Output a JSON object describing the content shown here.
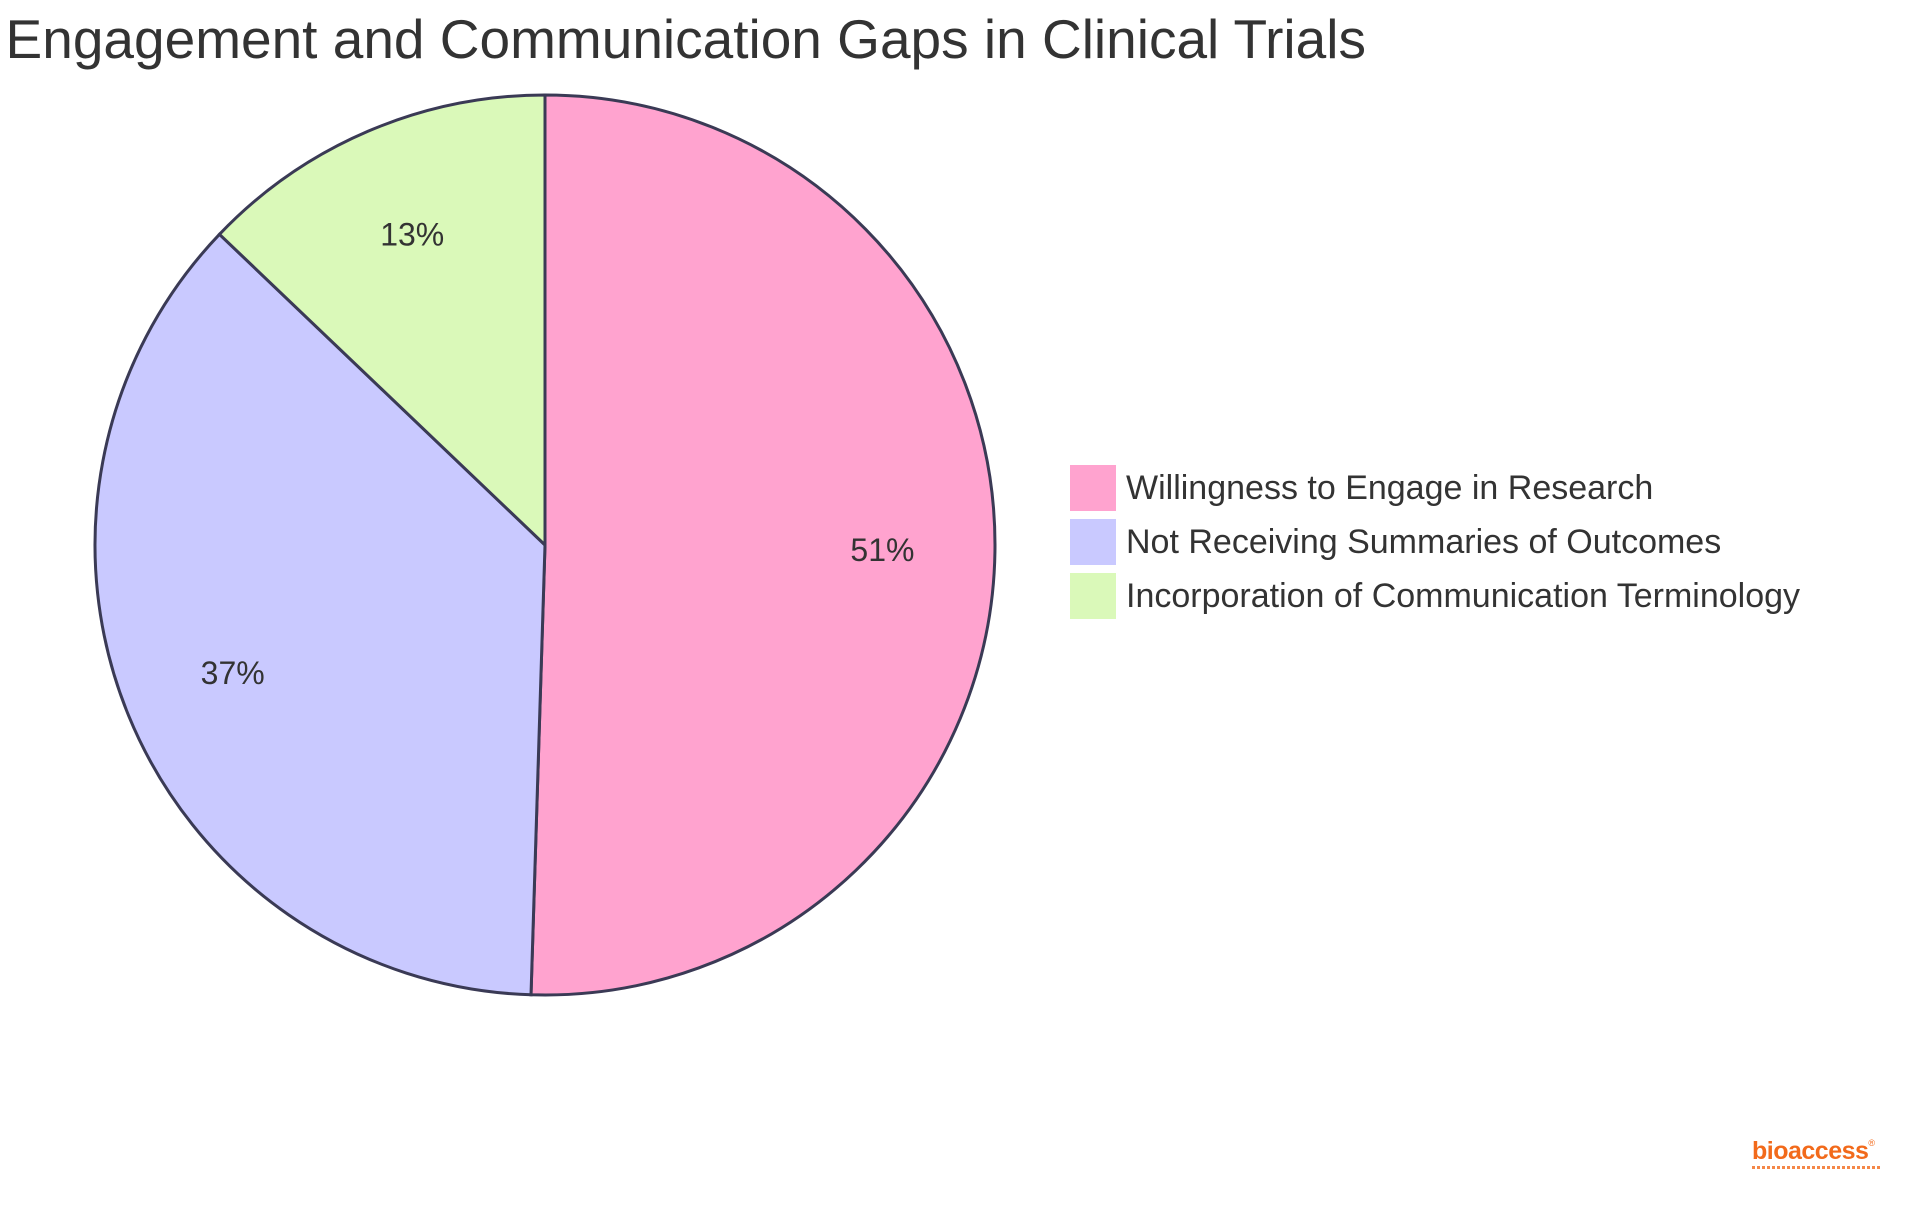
{
  "chart_data": {
    "type": "pie",
    "title": "t Engagement and Communication Gaps in Clinical Trials",
    "slices": [
      {
        "label": "Willingness to Engage in Research",
        "value": 51,
        "display": "51%",
        "color": "#ffa3cf"
      },
      {
        "label": "Not Receiving Summaries of Outcomes",
        "value": 37,
        "display": "37%",
        "color": "#c9c9ff"
      },
      {
        "label": "Incorporation of Communication Terminology",
        "value": 13,
        "display": "13%",
        "color": "#daf9b9"
      }
    ],
    "legend_position": "right"
  },
  "logo": {
    "text": "bioaccess",
    "mark": "®"
  }
}
